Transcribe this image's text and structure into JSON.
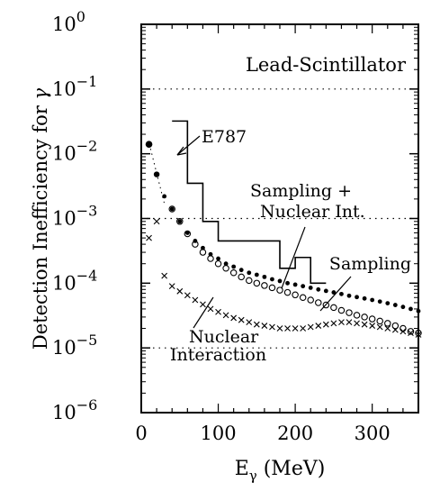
{
  "chart_data": {
    "type": "scatter",
    "title": "Lead-Scintillator",
    "xlabel": {
      "main": "E",
      "sub": "γ",
      "unit": "(MeV)"
    },
    "ylabel": {
      "main": "Detection Inefficiency for",
      "symbol": "γ"
    },
    "xlim": [
      0,
      360
    ],
    "ylim": [
      1e-06,
      1
    ],
    "y_scale": "log",
    "x_ticks": [
      "0",
      "100",
      "200",
      "300"
    ],
    "x_tick_values": [
      0,
      100,
      200,
      300
    ],
    "y_ticks": [
      {
        "base": "10",
        "exp": "0",
        "value": 1
      },
      {
        "base": "10",
        "exp": "−1",
        "value": 0.1
      },
      {
        "base": "10",
        "exp": "−2",
        "value": 0.01
      },
      {
        "base": "10",
        "exp": "−3",
        "value": 0.001
      },
      {
        "base": "10",
        "exp": "−4",
        "value": 0.0001
      },
      {
        "base": "10",
        "exp": "−5",
        "value": 1e-05
      },
      {
        "base": "10",
        "exp": "−6",
        "value": 1e-06
      }
    ],
    "grid": "dotted horizontal at 10^-1, 10^-3, 10^-5",
    "annotations": {
      "e787": "E787",
      "sampling_nuclear_line1": "Sampling +",
      "sampling_nuclear_line2": "Nuclear Int.",
      "sampling": "Sampling",
      "nuclear_line1": "Nuclear",
      "nuclear_line2": "Interaction"
    },
    "series": [
      {
        "name": "E787",
        "style": "step",
        "x": [
          40,
          60,
          80,
          100,
          120,
          140,
          160,
          180,
          200,
          220,
          240
        ],
        "y": [
          0.032,
          0.0035,
          0.0009,
          0.00045,
          0.00045,
          0.00045,
          0.00045,
          0.00017,
          0.00025,
          0.0001,
          0.0001
        ]
      },
      {
        "name": "Sampling",
        "style": "filled-dot",
        "x": [
          10,
          20,
          30,
          40,
          50,
          60,
          70,
          80,
          90,
          100,
          110,
          120,
          130,
          140,
          150,
          160,
          170,
          180,
          190,
          200,
          210,
          220,
          230,
          240,
          250,
          260,
          270,
          280,
          290,
          300,
          310,
          320,
          330,
          340,
          350,
          360
        ],
        "y": [
          0.014,
          0.0048,
          0.0022,
          0.0014,
          0.0009,
          0.0006,
          0.00045,
          0.00035,
          0.00028,
          0.00024,
          0.0002,
          0.00018,
          0.00016,
          0.000145,
          0.000135,
          0.000125,
          0.000115,
          0.000108,
          0.0001,
          9.5e-05,
          9e-05,
          8.5e-05,
          8e-05,
          7.6e-05,
          7.2e-05,
          6.8e-05,
          6.4e-05,
          6.1e-05,
          5.8e-05,
          5.5e-05,
          5.2e-05,
          4.9e-05,
          4.6e-05,
          4.3e-05,
          4e-05,
          3.7e-05
        ]
      },
      {
        "name": "Sampling + Nuclear Int.",
        "style": "open-circle",
        "x": [
          40,
          50,
          60,
          70,
          80,
          90,
          100,
          110,
          120,
          130,
          140,
          150,
          160,
          170,
          180,
          190,
          200,
          210,
          220,
          230,
          240,
          250,
          260,
          270,
          280,
          290,
          300,
          310,
          320,
          330,
          340,
          350,
          360
        ],
        "y": [
          0.0014,
          0.0009,
          0.00058,
          0.0004,
          0.0003,
          0.00024,
          0.0002,
          0.00017,
          0.000145,
          0.000125,
          0.00011,
          0.0001,
          9.2e-05,
          8.5e-05,
          7.8e-05,
          7.2e-05,
          6.6e-05,
          6e-05,
          5.5e-05,
          5e-05,
          4.6e-05,
          4.2e-05,
          3.8e-05,
          3.5e-05,
          3.2e-05,
          3e-05,
          2.8e-05,
          2.6e-05,
          2.4e-05,
          2.2e-05,
          2e-05,
          1.8e-05,
          1.7e-05
        ]
      },
      {
        "name": "Nuclear Interaction",
        "style": "cross",
        "x": [
          10,
          20,
          30,
          40,
          50,
          60,
          70,
          80,
          90,
          100,
          110,
          120,
          130,
          140,
          150,
          160,
          170,
          180,
          190,
          200,
          210,
          220,
          230,
          240,
          250,
          260,
          270,
          280,
          290,
          300,
          310,
          320,
          330,
          340,
          350,
          360
        ],
        "y": [
          0.0005,
          0.0009,
          0.00013,
          9e-05,
          7.5e-05,
          6.5e-05,
          5.5e-05,
          4.7e-05,
          4e-05,
          3.6e-05,
          3.2e-05,
          2.9e-05,
          2.7e-05,
          2.5e-05,
          2.3e-05,
          2.2e-05,
          2.1e-05,
          2e-05,
          2e-05,
          2e-05,
          2e-05,
          2.1e-05,
          2.2e-05,
          2.3e-05,
          2.4e-05,
          2.5e-05,
          2.5e-05,
          2.4e-05,
          2.3e-05,
          2.2e-05,
          2.1e-05,
          2e-05,
          1.9e-05,
          1.8e-05,
          1.7e-05,
          1.6e-05
        ]
      }
    ]
  }
}
